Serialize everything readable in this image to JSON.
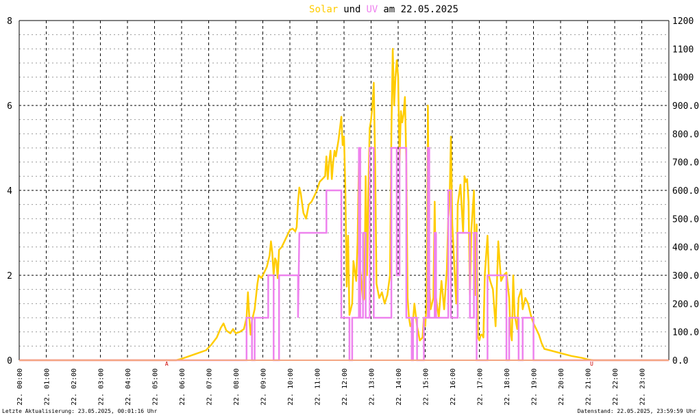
{
  "title": {
    "solar_word": "Solar",
    "and_word": "und",
    "uv_word": "UV",
    "date_part": "am 22.05.2025"
  },
  "footer": {
    "left": "Letzte Aktualisierung: 23.05.2025, 00:01:16 Uhr",
    "right": "Datenstand: 22.05.2025, 23:59:59 Uhr"
  },
  "markers": {
    "sunrise_label": "A",
    "sunset_label": "U",
    "sunrise_hour": 5.45,
    "sunset_hour": 21.15
  },
  "colors": {
    "solar": "#FFCC00",
    "uv": "#EE82EE",
    "overlap": "#F4A582",
    "baseline": "#F4A582",
    "grid": "#000000",
    "marker": "#CC0000"
  },
  "chart_data": {
    "type": "line",
    "title": "Solar und UV am 22.05.2025",
    "x_tick_labels": [
      "22. 00:00",
      "22. 01:00",
      "22. 02:00",
      "22. 03:00",
      "22. 04:00",
      "22. 05:00",
      "22. 06:00",
      "22. 07:00",
      "22. 08:00",
      "22. 09:00",
      "22. 10:00",
      "22. 11:00",
      "22. 12:00",
      "22. 13:00",
      "22. 14:00",
      "22. 15:00",
      "22. 16:00",
      "22. 17:00",
      "22. 18:00",
      "22. 19:00",
      "22. 20:00",
      "22. 21:00",
      "22. 22:00",
      "22. 23:00"
    ],
    "xlim_hours": [
      0,
      24
    ],
    "y_left": {
      "ylim": [
        0,
        8
      ],
      "ticks": [
        "0",
        "2",
        "4",
        "6",
        "8"
      ]
    },
    "y_right": {
      "ylim": [
        0,
        1200
      ],
      "ticks": [
        "0.0",
        "100.0",
        "200.0",
        "300.0",
        "400.0",
        "500.0",
        "600.0",
        "700.0",
        "800.0",
        "900.0",
        "1000",
        "1100",
        "1200"
      ]
    },
    "grid": true,
    "series": [
      {
        "name": "Solar",
        "axis": "right",
        "points": [
          [
            0,
            0
          ],
          [
            5.8,
            0
          ],
          [
            6.0,
            5
          ],
          [
            6.3,
            15
          ],
          [
            6.6,
            25
          ],
          [
            6.9,
            35
          ],
          [
            7.1,
            55
          ],
          [
            7.3,
            80
          ],
          [
            7.45,
            115
          ],
          [
            7.55,
            130
          ],
          [
            7.65,
            105
          ],
          [
            7.8,
            95
          ],
          [
            7.9,
            110
          ],
          [
            8.0,
            95
          ],
          [
            8.15,
            100
          ],
          [
            8.3,
            110
          ],
          [
            8.4,
            150
          ],
          [
            8.45,
            240
          ],
          [
            8.5,
            150
          ],
          [
            8.55,
            90
          ],
          [
            8.6,
            140
          ],
          [
            8.7,
            180
          ],
          [
            8.8,
            270
          ],
          [
            8.85,
            300
          ],
          [
            8.95,
            290
          ],
          [
            9.05,
            310
          ],
          [
            9.15,
            330
          ],
          [
            9.25,
            370
          ],
          [
            9.3,
            420
          ],
          [
            9.35,
            380
          ],
          [
            9.4,
            300
          ],
          [
            9.45,
            360
          ],
          [
            9.5,
            350
          ],
          [
            9.55,
            290
          ],
          [
            9.6,
            390
          ],
          [
            9.7,
            400
          ],
          [
            9.8,
            420
          ],
          [
            9.9,
            440
          ],
          [
            10.0,
            460
          ],
          [
            10.1,
            465
          ],
          [
            10.2,
            455
          ],
          [
            10.25,
            470
          ],
          [
            10.3,
            560
          ],
          [
            10.35,
            610
          ],
          [
            10.4,
            590
          ],
          [
            10.5,
            520
          ],
          [
            10.6,
            500
          ],
          [
            10.7,
            550
          ],
          [
            10.8,
            560
          ],
          [
            10.9,
            580
          ],
          [
            11.0,
            600
          ],
          [
            11.1,
            630
          ],
          [
            11.2,
            640
          ],
          [
            11.3,
            650
          ],
          [
            11.35,
            720
          ],
          [
            11.4,
            640
          ],
          [
            11.45,
            700
          ],
          [
            11.5,
            740
          ],
          [
            11.55,
            640
          ],
          [
            11.6,
            700
          ],
          [
            11.65,
            740
          ],
          [
            11.7,
            720
          ],
          [
            11.8,
            780
          ],
          [
            11.85,
            820
          ],
          [
            11.9,
            860
          ],
          [
            11.95,
            760
          ],
          [
            12.0,
            790
          ],
          [
            12.05,
            600
          ],
          [
            12.1,
            260
          ],
          [
            12.15,
            440
          ],
          [
            12.2,
            160
          ],
          [
            12.3,
            200
          ],
          [
            12.35,
            350
          ],
          [
            12.45,
            280
          ],
          [
            12.5,
            420
          ],
          [
            12.55,
            700
          ],
          [
            12.6,
            320
          ],
          [
            12.7,
            210
          ],
          [
            12.75,
            220
          ],
          [
            12.8,
            650
          ],
          [
            12.85,
            300
          ],
          [
            12.9,
            600
          ],
          [
            12.95,
            820
          ],
          [
            13.0,
            850
          ],
          [
            13.05,
            900
          ],
          [
            13.1,
            980
          ],
          [
            13.15,
            700
          ],
          [
            13.2,
            270
          ],
          [
            13.3,
            220
          ],
          [
            13.4,
            240
          ],
          [
            13.5,
            200
          ],
          [
            13.6,
            230
          ],
          [
            13.7,
            300
          ],
          [
            13.75,
            800
          ],
          [
            13.8,
            1100
          ],
          [
            13.85,
            900
          ],
          [
            13.9,
            1000
          ],
          [
            13.95,
            1060
          ],
          [
            14.0,
            1000
          ],
          [
            14.05,
            700
          ],
          [
            14.1,
            880
          ],
          [
            14.15,
            840
          ],
          [
            14.2,
            870
          ],
          [
            14.25,
            930
          ],
          [
            14.3,
            700
          ],
          [
            14.35,
            220
          ],
          [
            14.4,
            150
          ],
          [
            14.45,
            120
          ],
          [
            14.55,
            140
          ],
          [
            14.6,
            200
          ],
          [
            14.7,
            120
          ],
          [
            14.8,
            70
          ],
          [
            14.9,
            80
          ],
          [
            14.95,
            150
          ],
          [
            15.0,
            120
          ],
          [
            15.05,
            200
          ],
          [
            15.1,
            900
          ],
          [
            15.15,
            260
          ],
          [
            15.2,
            180
          ],
          [
            15.3,
            220
          ],
          [
            15.35,
            560
          ],
          [
            15.4,
            220
          ],
          [
            15.5,
            150
          ],
          [
            15.6,
            280
          ],
          [
            15.7,
            180
          ],
          [
            15.8,
            320
          ],
          [
            15.85,
            500
          ],
          [
            15.9,
            560
          ],
          [
            15.95,
            790
          ],
          [
            16.0,
            480
          ],
          [
            16.1,
            280
          ],
          [
            16.15,
            200
          ],
          [
            16.2,
            550
          ],
          [
            16.3,
            620
          ],
          [
            16.4,
            450
          ],
          [
            16.45,
            650
          ],
          [
            16.5,
            630
          ],
          [
            16.55,
            640
          ],
          [
            16.6,
            560
          ],
          [
            16.65,
            230
          ],
          [
            16.7,
            450
          ],
          [
            16.8,
            600
          ],
          [
            16.85,
            230
          ],
          [
            16.9,
            480
          ],
          [
            16.95,
            80
          ],
          [
            17.0,
            70
          ],
          [
            17.05,
            90
          ],
          [
            17.1,
            90
          ],
          [
            17.15,
            80
          ],
          [
            17.2,
            300
          ],
          [
            17.3,
            440
          ],
          [
            17.35,
            300
          ],
          [
            17.4,
            280
          ],
          [
            17.5,
            250
          ],
          [
            17.6,
            120
          ],
          [
            17.7,
            420
          ],
          [
            17.75,
            350
          ],
          [
            17.8,
            280
          ],
          [
            17.9,
            300
          ],
          [
            18.0,
            310
          ],
          [
            18.1,
            220
          ],
          [
            18.15,
            100
          ],
          [
            18.2,
            70
          ],
          [
            18.25,
            300
          ],
          [
            18.3,
            160
          ],
          [
            18.4,
            110
          ],
          [
            18.45,
            220
          ],
          [
            18.55,
            250
          ],
          [
            18.6,
            180
          ],
          [
            18.7,
            220
          ],
          [
            18.8,
            200
          ],
          [
            18.9,
            160
          ],
          [
            19.0,
            130
          ],
          [
            19.1,
            110
          ],
          [
            19.2,
            90
          ],
          [
            19.3,
            60
          ],
          [
            19.4,
            40
          ],
          [
            19.6,
            35
          ],
          [
            20.0,
            25
          ],
          [
            20.4,
            15
          ],
          [
            20.8,
            8
          ],
          [
            21.0,
            3
          ],
          [
            21.2,
            0
          ],
          [
            24,
            0
          ]
        ]
      },
      {
        "name": "UV",
        "axis": "left",
        "step": true,
        "points": [
          [
            0,
            0
          ],
          [
            7.0,
            0
          ],
          [
            7.05,
            0
          ],
          [
            8.4,
            0
          ],
          [
            8.4,
            1
          ],
          [
            8.6,
            1
          ],
          [
            8.6,
            0
          ],
          [
            8.7,
            0
          ],
          [
            8.7,
            1
          ],
          [
            9.2,
            1
          ],
          [
            9.2,
            2
          ],
          [
            9.4,
            2
          ],
          [
            9.4,
            0
          ],
          [
            9.6,
            0
          ],
          [
            9.6,
            2
          ],
          [
            10.3,
            2
          ],
          [
            10.3,
            1
          ],
          [
            10.35,
            3
          ],
          [
            11.35,
            3
          ],
          [
            11.35,
            4
          ],
          [
            11.9,
            4
          ],
          [
            11.9,
            1
          ],
          [
            12.2,
            1
          ],
          [
            12.2,
            0
          ],
          [
            12.3,
            0
          ],
          [
            12.3,
            1
          ],
          [
            12.55,
            1
          ],
          [
            12.55,
            5
          ],
          [
            12.6,
            5
          ],
          [
            12.6,
            1
          ],
          [
            12.7,
            1
          ],
          [
            12.7,
            3
          ],
          [
            12.8,
            3
          ],
          [
            12.8,
            1
          ],
          [
            12.95,
            1
          ],
          [
            12.95,
            5
          ],
          [
            13.1,
            5
          ],
          [
            13.1,
            1
          ],
          [
            13.75,
            1
          ],
          [
            13.75,
            5
          ],
          [
            13.95,
            5
          ],
          [
            13.95,
            2
          ],
          [
            14.05,
            2
          ],
          [
            14.05,
            5
          ],
          [
            14.3,
            5
          ],
          [
            14.3,
            1
          ],
          [
            14.5,
            1
          ],
          [
            14.5,
            0
          ],
          [
            14.55,
            0
          ],
          [
            14.55,
            1
          ],
          [
            14.7,
            1
          ],
          [
            14.7,
            0
          ],
          [
            14.95,
            0
          ],
          [
            14.95,
            1
          ],
          [
            15.1,
            1
          ],
          [
            15.1,
            5
          ],
          [
            15.15,
            5
          ],
          [
            15.15,
            1
          ],
          [
            15.35,
            1
          ],
          [
            15.35,
            3
          ],
          [
            15.4,
            3
          ],
          [
            15.4,
            1
          ],
          [
            15.85,
            1
          ],
          [
            15.85,
            4
          ],
          [
            15.95,
            4
          ],
          [
            15.95,
            1
          ],
          [
            16.2,
            1
          ],
          [
            16.2,
            3
          ],
          [
            16.65,
            3
          ],
          [
            16.65,
            1
          ],
          [
            16.8,
            1
          ],
          [
            16.8,
            3
          ],
          [
            16.9,
            3
          ],
          [
            16.9,
            0
          ],
          [
            17.3,
            0
          ],
          [
            17.3,
            2
          ],
          [
            18.0,
            2
          ],
          [
            18.0,
            0
          ],
          [
            18.1,
            0
          ],
          [
            18.1,
            1
          ],
          [
            18.45,
            1
          ],
          [
            18.45,
            0
          ],
          [
            18.6,
            0
          ],
          [
            18.6,
            1
          ],
          [
            19.0,
            1
          ],
          [
            19.0,
            0
          ],
          [
            24,
            0
          ]
        ]
      }
    ]
  }
}
